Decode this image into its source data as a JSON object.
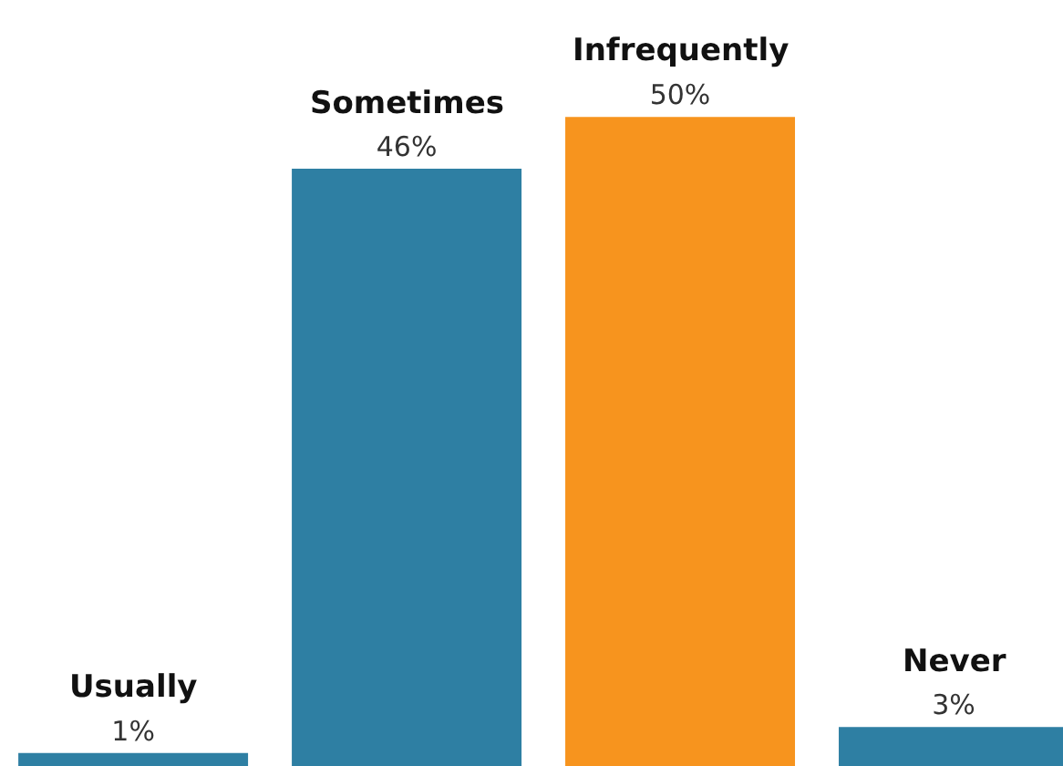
{
  "chart_data": {
    "type": "bar",
    "categories": [
      "Usually",
      "Sometimes",
      "Infrequently",
      "Never"
    ],
    "values": [
      1,
      46,
      50,
      3
    ],
    "value_labels": [
      "1%",
      "46%",
      "50%",
      "3%"
    ],
    "colors": [
      "#2e7fa3",
      "#2e7fa3",
      "#f7941e",
      "#2e7fa3"
    ],
    "ylim": [
      0,
      59
    ]
  }
}
